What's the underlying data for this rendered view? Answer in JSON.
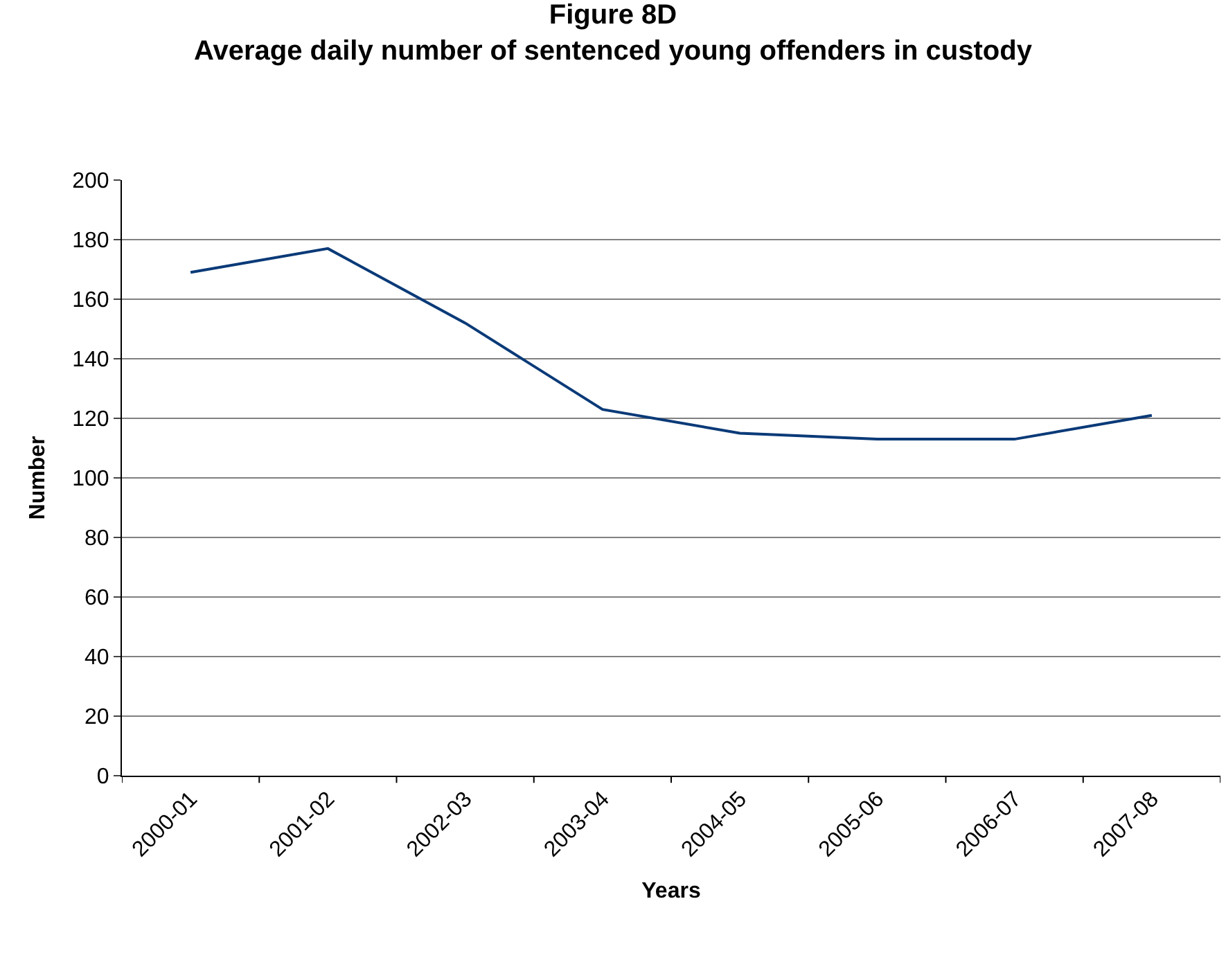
{
  "chart_data": {
    "type": "line",
    "title": "Figure 8D\nAverage daily number of sentenced young offenders in custody",
    "xlabel": "Years",
    "ylabel": "Number",
    "categories": [
      "2000-01",
      "2001-02",
      "2002-03",
      "2003-04",
      "2004-05",
      "2005-06",
      "2006-07",
      "2007-08"
    ],
    "series": [
      {
        "color": "#0a3a78",
        "values": [
          169,
          177,
          152,
          123,
          115,
          113,
          113,
          121
        ]
      }
    ],
    "ylim": [
      0,
      200
    ],
    "yticks": [
      0,
      20,
      40,
      60,
      80,
      100,
      120,
      140,
      160,
      180,
      200
    ],
    "grid": "y"
  }
}
